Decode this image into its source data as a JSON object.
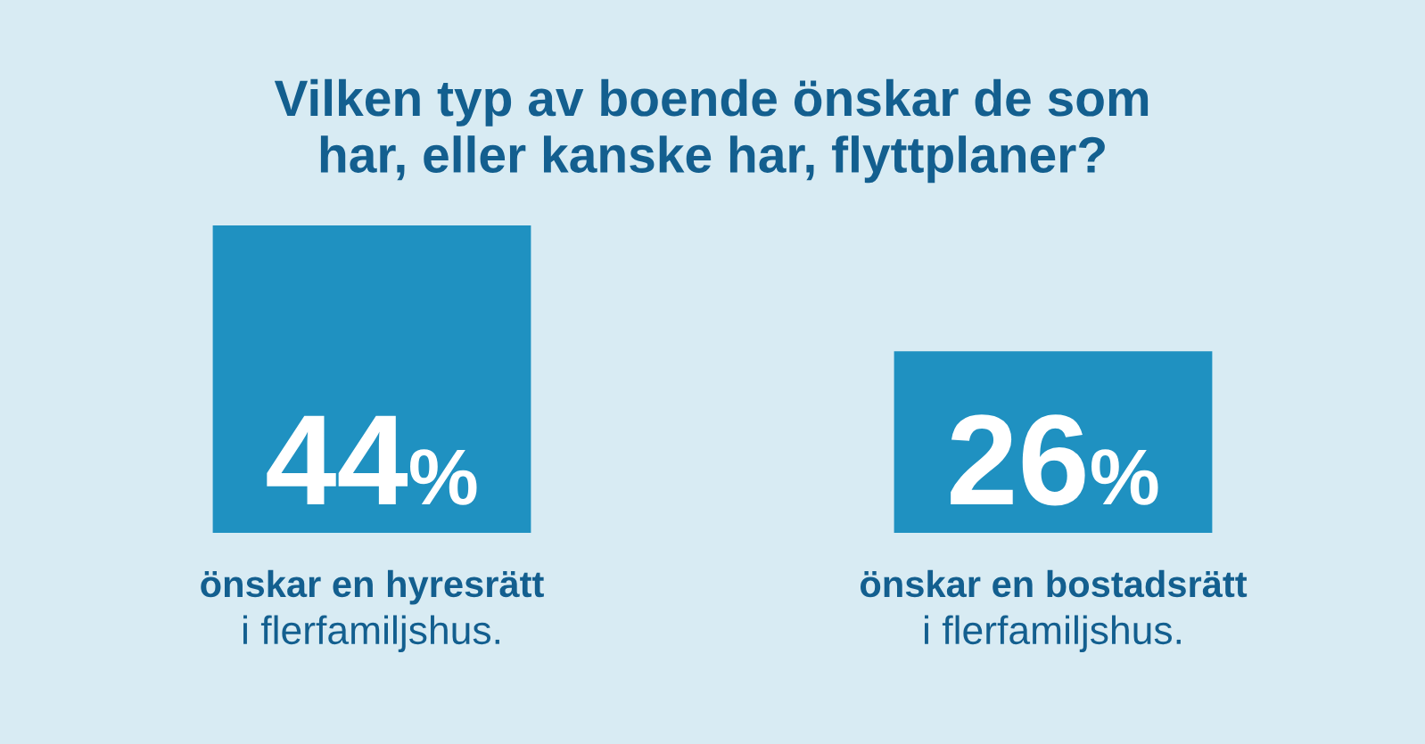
{
  "chart_data": {
    "type": "bar",
    "title": "Vilken typ av boende önskar de som\nhar, eller kanske har, flyttplaner?",
    "categories": [
      "önskar en hyresrätt\ni flerfamiljshus.",
      "önskar en bostadsrätt\ni flerfamiljshus."
    ],
    "values": [
      44,
      26
    ],
    "color": "#1f91c1",
    "value_labels": [
      "44%",
      "26%"
    ]
  }
}
